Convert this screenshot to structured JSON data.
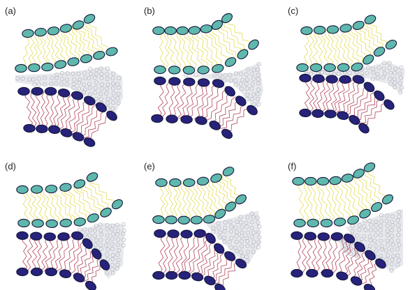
{
  "figure": {
    "panels": [
      {
        "id": "a",
        "label": "(a)"
      },
      {
        "id": "b",
        "label": "(b)"
      },
      {
        "id": "c",
        "label": "(c)"
      },
      {
        "id": "d",
        "label": "(d)"
      },
      {
        "id": "e",
        "label": "(e)"
      },
      {
        "id": "f",
        "label": "(f)"
      }
    ],
    "colors": {
      "upper_head": "#5fb8ad",
      "lower_head": "#27227a",
      "head_stroke": "#12163a",
      "upper_tail": "#e6dc57",
      "lower_tail": "#b2455a",
      "solvent": "#b9bcc6",
      "background": "#ffffff"
    }
  }
}
